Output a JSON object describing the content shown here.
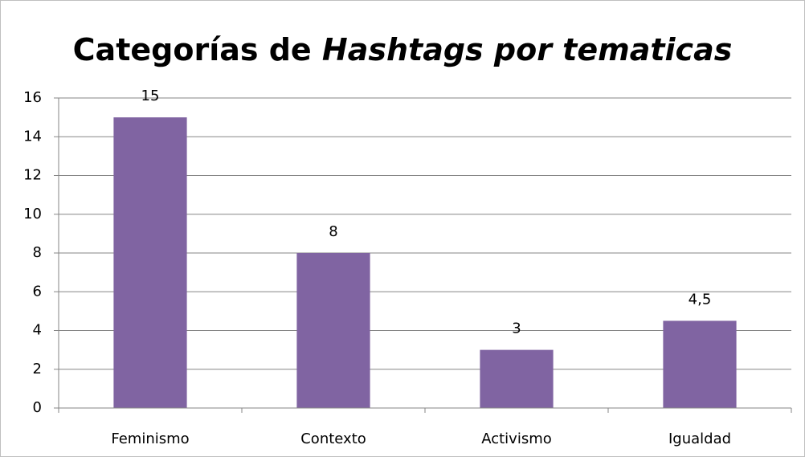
{
  "chart_data": {
    "type": "bar",
    "title": [
      {
        "text": "Categorías de",
        "italic": false
      },
      {
        "text": "Hashtags por tematicas",
        "italic": true
      }
    ],
    "categories": [
      "Feminismo",
      "Contexto",
      "Activismo",
      "Igualdad"
    ],
    "values": [
      15,
      8,
      3,
      4.5
    ],
    "value_labels": [
      "15",
      "8",
      "3",
      "4,5"
    ],
    "color": "#8064a2",
    "ylim": [
      0,
      16
    ],
    "yticks": [
      0,
      2,
      4,
      6,
      8,
      10,
      12,
      14,
      16
    ],
    "grid": true
  }
}
